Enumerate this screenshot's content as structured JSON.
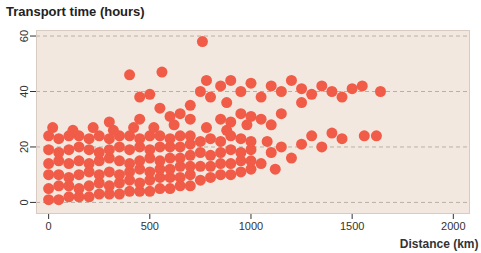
{
  "chart_data": {
    "type": "scatter",
    "title": "Transport time (hours)",
    "x_label": "Distance (km)",
    "color": "#f05c48",
    "grid": true,
    "xlim": [
      -60,
      2080
    ],
    "ylim": [
      -4,
      62
    ],
    "xticks": [
      0,
      500,
      1000,
      1500,
      2000
    ],
    "yticks": [
      0,
      20,
      40,
      60
    ],
    "x": [
      0,
      50,
      100,
      150,
      200,
      250,
      300,
      350,
      400,
      450,
      500,
      550,
      600,
      650,
      700,
      0,
      50,
      100,
      150,
      200,
      250,
      300,
      350,
      400,
      450,
      500,
      550,
      600,
      650,
      700,
      0,
      50,
      100,
      150,
      200,
      250,
      300,
      350,
      400,
      450,
      500,
      550,
      600,
      650,
      700,
      0,
      50,
      100,
      150,
      200,
      250,
      300,
      350,
      400,
      450,
      500,
      550,
      600,
      650,
      700,
      0,
      50,
      100,
      150,
      200,
      250,
      300,
      350,
      400,
      450,
      500,
      550,
      600,
      650,
      700,
      0,
      50,
      100,
      150,
      200,
      250,
      300,
      350,
      400,
      450,
      500,
      550,
      600,
      650,
      700,
      20,
      120,
      220,
      320,
      420,
      520,
      620,
      750,
      800,
      850,
      900,
      950,
      1000,
      750,
      800,
      850,
      900,
      950,
      1000,
      750,
      800,
      850,
      900,
      950,
      1000,
      750,
      800,
      850,
      900,
      950,
      1000,
      780,
      880,
      980,
      1050,
      1100,
      1080,
      1150,
      1200,
      1250,
      1120,
      1300,
      1350,
      1400,
      1450,
      1560,
      1620,
      650,
      700,
      750,
      780,
      800,
      850,
      880,
      900,
      950,
      1000,
      1050,
      1100,
      1150,
      1200,
      1250,
      1300,
      1350,
      1400,
      1450,
      1500,
      1550,
      1640,
      950,
      1050,
      1150,
      600,
      550,
      500,
      560,
      400,
      450,
      760,
      850,
      1250,
      300,
      450,
      700,
      900,
      1000,
      1100
    ],
    "values": [
      1,
      1,
      2,
      2,
      2,
      3,
      3,
      3,
      4,
      4,
      4,
      5,
      5,
      6,
      6,
      5,
      6,
      6,
      5,
      6,
      7,
      6,
      7,
      8,
      7,
      8,
      9,
      9,
      9,
      10,
      10,
      10,
      9,
      10,
      11,
      10,
      11,
      10,
      11,
      12,
      11,
      12,
      12,
      13,
      13,
      14,
      15,
      14,
      15,
      14,
      15,
      16,
      15,
      14,
      15,
      16,
      15,
      16,
      16,
      17,
      19,
      18,
      19,
      20,
      19,
      18,
      19,
      20,
      19,
      20,
      19,
      20,
      20,
      20,
      21,
      24,
      23,
      24,
      24,
      23,
      24,
      23,
      24,
      24,
      23,
      24,
      24,
      23,
      24,
      24,
      27,
      26,
      27,
      26,
      27,
      27,
      28,
      8,
      9,
      10,
      10,
      11,
      12,
      13,
      13,
      14,
      14,
      15,
      15,
      18,
      17,
      18,
      19,
      18,
      19,
      22,
      23,
      22,
      24,
      23,
      22,
      27,
      26,
      28,
      14,
      18,
      22,
      20,
      16,
      21,
      12,
      24,
      20,
      25,
      23,
      24,
      24,
      32,
      35,
      40,
      44,
      38,
      42,
      36,
      44,
      40,
      43,
      38,
      42,
      40,
      44,
      41,
      39,
      42,
      40,
      38,
      41,
      42,
      40,
      32,
      30,
      32,
      31,
      34,
      39,
      47,
      46,
      38,
      58,
      30,
      36,
      29,
      30,
      30,
      29,
      31,
      28
    ]
  }
}
